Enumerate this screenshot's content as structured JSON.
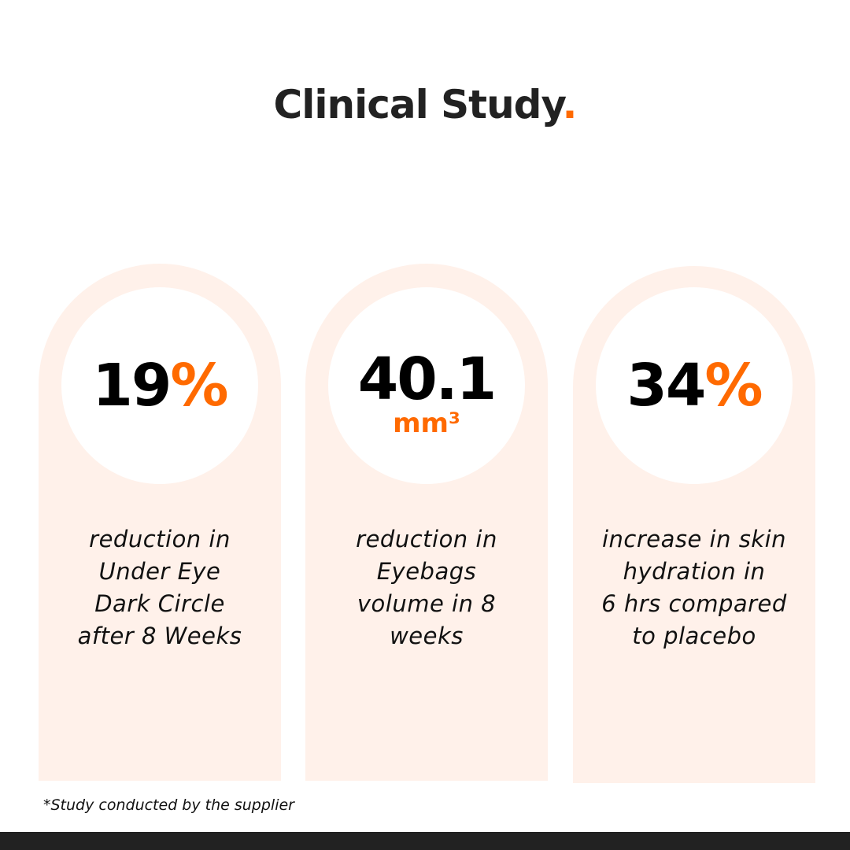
{
  "title": {
    "text": "Clinical Study",
    "dot": "."
  },
  "colors": {
    "accent": "#ff6a00",
    "card_bg": "#fff1ea",
    "bottom_bar": "#222222"
  },
  "cards": [
    {
      "value": "19",
      "unit": "%",
      "description_lines": [
        "reduction in",
        "Under Eye",
        "Dark Circle",
        "after 8 Weeks"
      ]
    },
    {
      "value": "40.1",
      "sub_unit": "mm³",
      "description_lines": [
        "reduction in",
        "Eyebags",
        "volume in 8",
        "weeks"
      ]
    },
    {
      "value": "34",
      "unit": "%",
      "description_lines": [
        "increase in skin",
        "hydration in",
        "6 hrs compared",
        "to placebo"
      ]
    }
  ],
  "footnote": "*Study conducted by the supplier"
}
